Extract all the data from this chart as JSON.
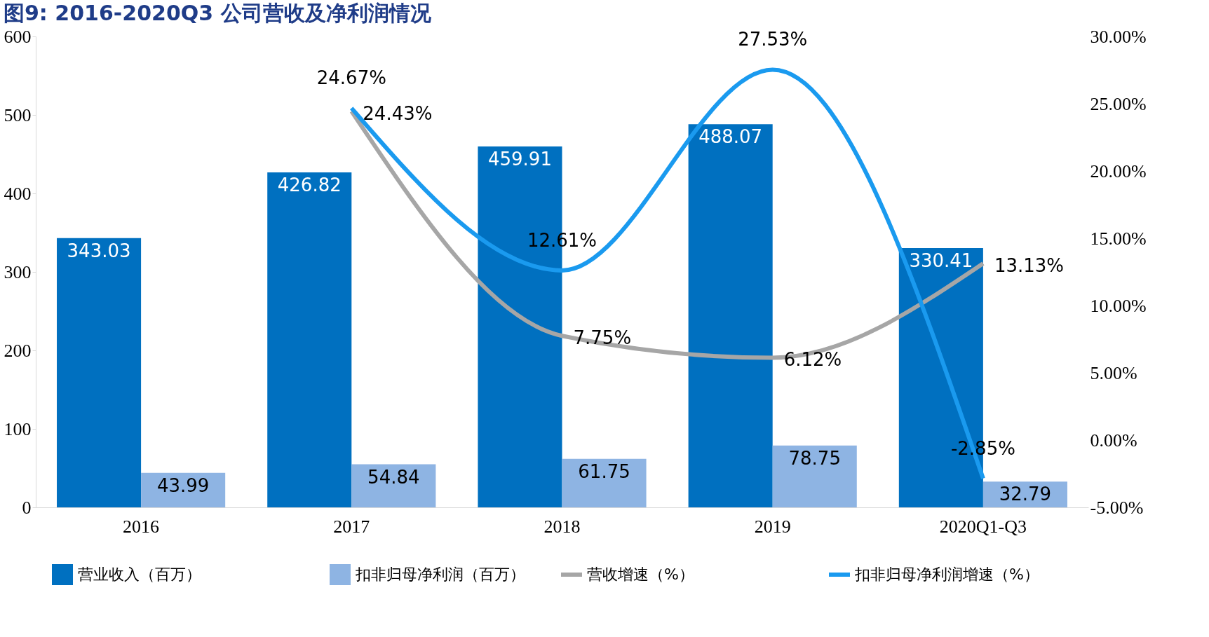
{
  "chart_data": {
    "type": "bar",
    "title": "图9:    2016-2020Q3 公司营收及净利润情况",
    "categories": [
      "2016",
      "2017",
      "2018",
      "2019",
      "2020Q1-Q3"
    ],
    "series": [
      {
        "name": "营业收入（百万）",
        "color": "#0070c0",
        "values": [
          343.03,
          426.82,
          459.91,
          488.07,
          330.41
        ]
      },
      {
        "name": "扣非归母净利润（百万）",
        "color": "#8eb4e3",
        "values": [
          43.99,
          54.84,
          61.75,
          78.75,
          32.79
        ]
      },
      {
        "name": "营收增速（%）",
        "type": "line",
        "axis": "y2",
        "color": "#a6a6a6",
        "values": [
          null,
          24.43,
          7.75,
          6.12,
          13.13
        ],
        "value_labels": [
          null,
          "24.43%",
          "7.75%",
          "6.12%",
          "13.13%"
        ]
      },
      {
        "name": "扣非归母净利润增速（%）",
        "type": "line",
        "axis": "y2",
        "color": "#1a9aef",
        "values": [
          null,
          24.67,
          12.61,
          27.53,
          -2.85
        ],
        "value_labels": [
          null,
          "24.67%",
          "12.61%",
          "27.53%",
          "-2.85%"
        ]
      }
    ],
    "ylim": [
      0,
      600
    ],
    "yticks": [
      0,
      100,
      200,
      300,
      400,
      500,
      600
    ],
    "y2lim": [
      -5,
      30
    ],
    "y2ticks": [
      {
        "value": -5,
        "label": "-5.00%"
      },
      {
        "value": 0,
        "label": "0.00%"
      },
      {
        "value": 5,
        "label": "5.00%"
      },
      {
        "value": 10,
        "label": "10.00%"
      },
      {
        "value": 15,
        "label": "15.00%"
      },
      {
        "value": 20,
        "label": "20.00%"
      },
      {
        "value": 25,
        "label": "25.00%"
      },
      {
        "value": 30,
        "label": "30.00%"
      }
    ],
    "data_labels": true,
    "legend": "bottom",
    "grid": false
  }
}
